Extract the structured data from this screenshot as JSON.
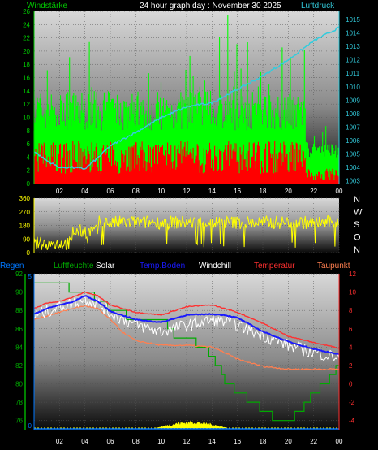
{
  "header": {
    "left": "Windstärke",
    "center": "24 hour graph day : November 30 2025",
    "right": "Luftdruck"
  },
  "panel3_header": {
    "regen": "Regen",
    "luftfeuchte": "Luftfeuchte",
    "solar": "Solar",
    "temp_boden": "Temp.Boden",
    "windchill": "Windchill",
    "temperatur": "Temperatur",
    "taupunkt": "Taupunkt"
  },
  "colors": {
    "wind_gust": "#00ff00",
    "wind_avg": "#ff0000",
    "pressure": "#33ccdd",
    "wind_dir": "#ffff00",
    "humidity": "#00aa00",
    "solar": "#ffff00",
    "temp_boden": "#1a1aff",
    "windchill": "#ffffff",
    "temperatur": "#ff3030",
    "taupunkt": "#ff7f50",
    "regen": "#0077ff",
    "header_green": "#00cc00",
    "header_cyan": "#33ccdd"
  },
  "chart_data": [
    {
      "type": "bar",
      "x_ticks": [
        "02",
        "04",
        "06",
        "08",
        "10",
        "12",
        "14",
        "16",
        "18",
        "20",
        "22",
        "00"
      ],
      "y_left_ticks": [
        "0",
        "2",
        "4",
        "6",
        "8",
        "10",
        "12",
        "14",
        "16",
        "18",
        "20",
        "22",
        "24",
        "26"
      ],
      "y_right_ticks": [
        "1003",
        "1004",
        "1005",
        "1006",
        "1007",
        "1008",
        "1009",
        "1010",
        "1011",
        "1012",
        "1013",
        "1014",
        "1015"
      ],
      "ylim_left": [
        0,
        26
      ],
      "ylim_right": [
        1002.8,
        1015.6
      ],
      "series": [
        {
          "values_hint": "gusts 7-14, peaks ~22-26"
        },
        {
          "values_hint": "avg 2-7"
        },
        {
          "x_hours": [
            0,
            1,
            2,
            3,
            4,
            5,
            6,
            8,
            10,
            12,
            14,
            16,
            18,
            20,
            22,
            24
          ],
          "values": [
            1005.2,
            1004.5,
            1004.0,
            1004.0,
            1003.9,
            1004.7,
            1005.6,
            1006.6,
            1007.7,
            1008.5,
            1008.8,
            1009.8,
            1010.8,
            1012.0,
            1013.4,
            1014.4
          ]
        }
      ]
    },
    {
      "type": "line",
      "x_ticks": [
        "02",
        "04",
        "06",
        "08",
        "10",
        "12",
        "14",
        "16",
        "18",
        "20",
        "22",
        "00"
      ],
      "y_left_ticks": [
        "0",
        "90",
        "180",
        "270",
        "360"
      ],
      "y_right_ticks": [
        "N",
        "W",
        "S",
        "O",
        "N"
      ],
      "ylim": [
        0,
        360
      ],
      "series": [
        {
          "values_hint": "mostly 150-260 deg"
        }
      ]
    },
    {
      "type": "line",
      "x_ticks": [
        "02",
        "04",
        "06",
        "08",
        "10",
        "12",
        "14",
        "16",
        "18",
        "20",
        "22",
        "00"
      ],
      "y_left_ticks": [
        "76",
        "78",
        "80",
        "82",
        "84",
        "86",
        "88",
        "90",
        "92"
      ],
      "y_right_ticks": [
        "-4",
        "-2",
        "0",
        "2",
        "4",
        "6",
        "8",
        "10",
        "12"
      ],
      "y_rain_ticks": [
        "0",
        "5"
      ],
      "ylim_left": [
        75,
        92
      ],
      "ylim_right": [
        -5,
        12
      ],
      "series": [
        {
          "x_hours": [
            0,
            1,
            2,
            3,
            4,
            5,
            6,
            8,
            10,
            12,
            14,
            15,
            16,
            18,
            20,
            22,
            24
          ],
          "values": [
            8.2,
            8.8,
            9.0,
            9.4,
            10.0,
            9.6,
            8.6,
            7.8,
            7.5,
            8.4,
            8.6,
            8.2,
            7.8,
            6.6,
            5.2,
            4.5,
            3.9
          ]
        },
        {
          "x_hours": [
            0,
            1,
            2,
            3,
            4,
            5,
            6,
            8,
            10,
            12,
            14,
            15,
            16,
            18,
            20,
            22,
            24
          ],
          "values": [
            7.6,
            8.2,
            8.6,
            8.9,
            9.6,
            9.0,
            7.9,
            7.0,
            6.7,
            7.5,
            7.6,
            7.5,
            7.2,
            5.7,
            4.6,
            3.8,
            3.2
          ]
        },
        {
          "x_hours": [
            0,
            1,
            2,
            3,
            4,
            5,
            6,
            8,
            10,
            12,
            14,
            15,
            16,
            18,
            20,
            22,
            24
          ],
          "values": [
            7.4,
            7.9,
            8.4,
            8.8,
            9.3,
            8.8,
            7.7,
            6.4,
            5.7,
            6.4,
            6.9,
            6.8,
            6.4,
            5.3,
            4.2,
            3.4,
            2.9
          ]
        },
        {
          "x_hours": [
            0,
            1,
            2,
            3,
            4,
            5,
            6,
            7,
            8,
            10,
            12,
            14,
            15,
            16,
            18,
            20,
            22,
            24
          ],
          "values": [
            7.0,
            7.4,
            7.8,
            8.2,
            8.5,
            8.2,
            7.0,
            5.6,
            4.7,
            4.2,
            4.2,
            4.0,
            3.4,
            2.7,
            1.9,
            1.6,
            1.6,
            1.6
          ]
        },
        {
          "x_hours": [
            0,
            1,
            2,
            3,
            4,
            5,
            6,
            8,
            10,
            11,
            12,
            13,
            14,
            15,
            16,
            17,
            18,
            19,
            20,
            21,
            22,
            23,
            24
          ],
          "values": [
            91,
            91,
            91,
            90,
            90,
            89,
            88,
            87,
            87,
            85,
            85,
            84,
            83,
            80,
            79,
            78,
            77,
            76,
            76,
            77,
            79,
            80,
            82
          ]
        }
      ]
    }
  ]
}
